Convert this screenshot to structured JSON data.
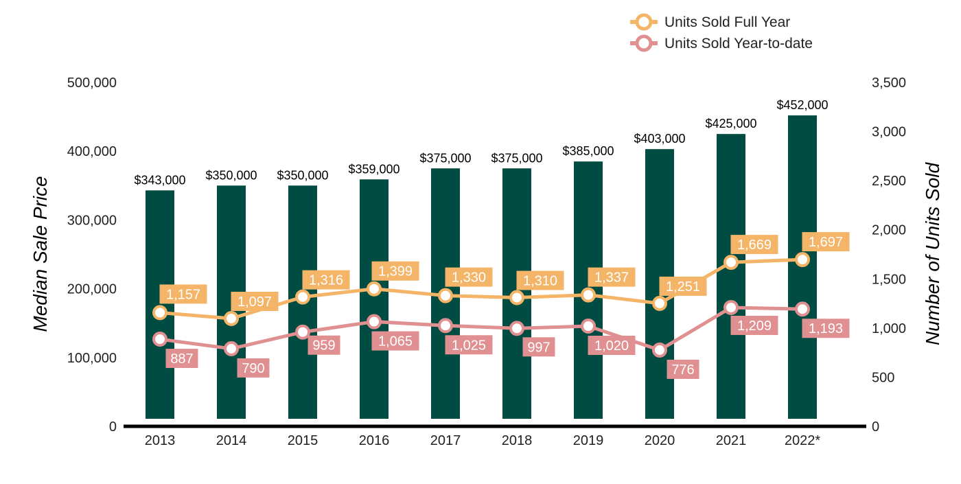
{
  "chart_data": {
    "type": "bar",
    "categories": [
      "2013",
      "2014",
      "2015",
      "2016",
      "2017",
      "2018",
      "2019",
      "2020",
      "2021",
      "2022*"
    ],
    "bars": {
      "axis": "left",
      "values": [
        343000,
        350000,
        350000,
        359000,
        375000,
        375000,
        385000,
        403000,
        425000,
        452000
      ],
      "labels": [
        "$343,000",
        "$350,000",
        "$350,000",
        "$359,000",
        "$375,000",
        "$375,000",
        "$385,000",
        "$403,000",
        "$425,000",
        "$452,000"
      ],
      "color": "#004c42"
    },
    "series": [
      {
        "name": "Units Sold Full Year",
        "type": "line",
        "axis": "right",
        "values": [
          1157,
          1097,
          1316,
          1399,
          1330,
          1310,
          1337,
          1251,
          1669,
          1697
        ],
        "labels": [
          "1,157",
          "1,097",
          "1,316",
          "1,399",
          "1,330",
          "1,310",
          "1,337",
          "1,251",
          "1,669",
          "1,697"
        ],
        "color": "#f5b568"
      },
      {
        "name": "Units Sold Year-to-date",
        "type": "line",
        "axis": "right",
        "values": [
          887,
          790,
          959,
          1065,
          1025,
          997,
          1020,
          776,
          1209,
          1193
        ],
        "labels": [
          "887",
          "790",
          "959",
          "1,065",
          "1,025",
          "997",
          "1,020",
          "776",
          "1,209",
          "1,193"
        ],
        "color": "#e09090"
      }
    ],
    "ylabel": "Median Sale Price",
    "ylabel_right": "Number of Units Sold",
    "ylim": [
      0,
      500000
    ],
    "ylim_right": [
      0,
      3500
    ],
    "yticks": [
      "0",
      "100,000",
      "200,000",
      "300,000",
      "400,000",
      "500,000"
    ],
    "yticks_right": [
      "0",
      "500",
      "1,000",
      "1,500",
      "2,000",
      "2,500",
      "3,000",
      "3,500"
    ],
    "grid": false,
    "legend_position": "top-right"
  }
}
